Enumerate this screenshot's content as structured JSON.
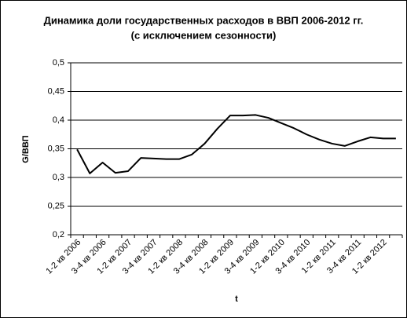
{
  "chart_data": {
    "type": "line",
    "title": "Динамика доли государственных расходов в ВВП 2006-2012 гг.",
    "subtitle": "(с исключением сезонности)",
    "y_label": "G/ВВП",
    "x_label": "t",
    "categories": [
      "1-2 кв 2006",
      null,
      "3-4 кв 2006",
      null,
      "1-2 кв 2007",
      null,
      "3-4 кв 2007",
      null,
      "1-2 кв 2008",
      null,
      "3-4 кв 2008",
      null,
      "1-2 кв 2009",
      null,
      "3-4 кв 2009",
      null,
      "1-2 кв 2010",
      null,
      "3-4 кв 2010",
      null,
      "1-2 кв 2011",
      null,
      "3-4 кв 2011",
      null,
      "1-2 кв 2012",
      null
    ],
    "series": [
      {
        "name": "G/ВВП",
        "color": "#000000",
        "values": [
          0.349,
          0.307,
          0.326,
          0.308,
          0.311,
          0.334,
          0.333,
          0.332,
          0.332,
          0.34,
          0.359,
          0.385,
          0.408,
          0.408,
          0.409,
          0.404,
          0.395,
          0.386,
          0.375,
          0.366,
          0.359,
          0.355,
          0.363,
          0.37,
          0.368,
          0.368
        ]
      }
    ],
    "ylim": [
      0.2,
      0.5
    ],
    "yticks": [
      {
        "value": 0.2,
        "label": "0,2"
      },
      {
        "value": 0.25,
        "label": "0,25"
      },
      {
        "value": 0.3,
        "label": "0,3"
      },
      {
        "value": 0.35,
        "label": "0,35"
      },
      {
        "value": 0.4,
        "label": "0,4"
      },
      {
        "value": 0.45,
        "label": "0,45"
      },
      {
        "value": 0.5,
        "label": "0,5"
      }
    ],
    "grid": true
  }
}
